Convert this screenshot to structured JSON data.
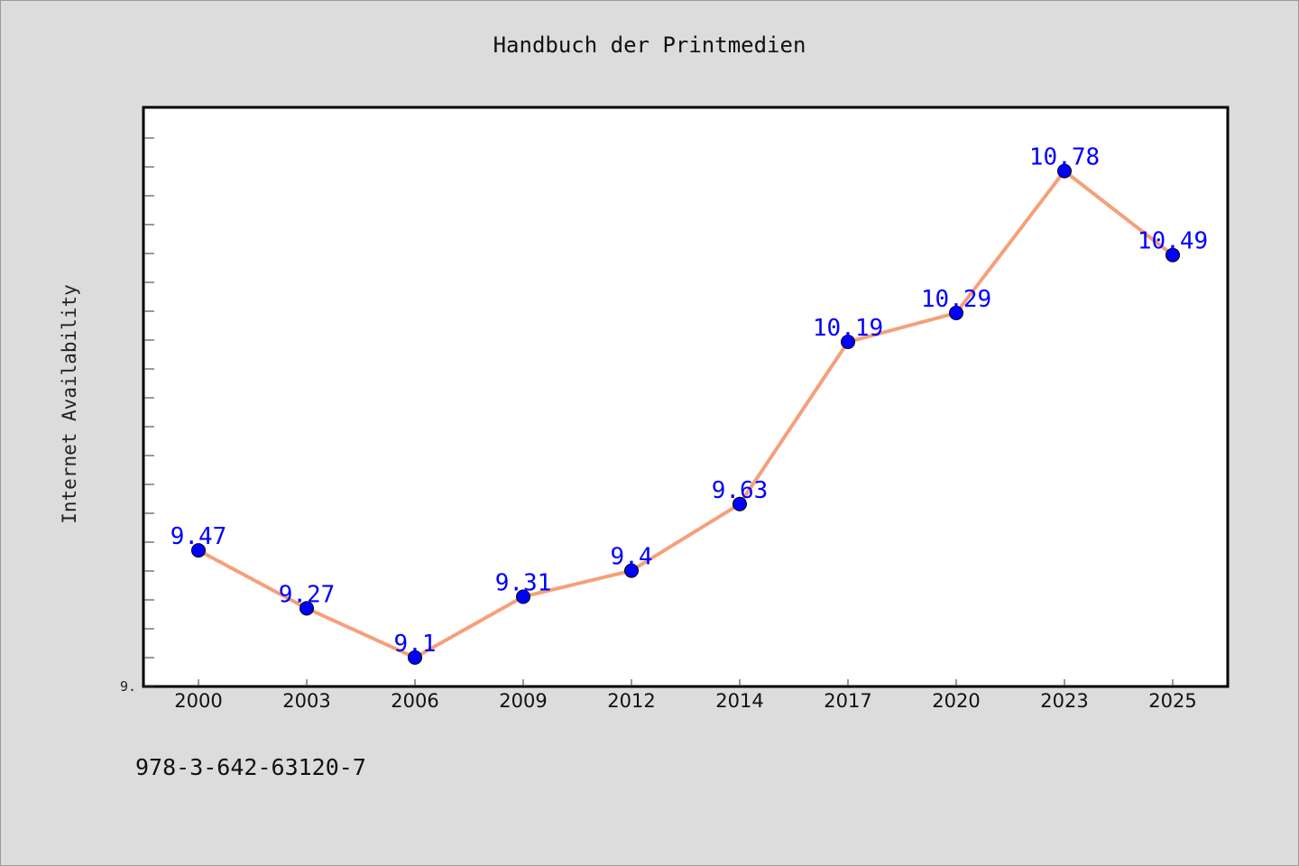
{
  "chart_data": {
    "type": "line",
    "title": "Handbuch der Printmedien",
    "xlabel": "",
    "ylabel": "Internet Availability",
    "categories": [
      "2000",
      "2003",
      "2006",
      "2009",
      "2012",
      "2014",
      "2017",
      "2020",
      "2023",
      "2025"
    ],
    "series": [
      {
        "values": [
          9.47,
          9.27,
          9.1,
          9.31,
          9.4,
          9.63,
          10.19,
          10.29,
          10.78,
          10.49
        ]
      }
    ],
    "data_labels": [
      "9.47",
      "9.27",
      "9.1",
      "9.31",
      "9.4",
      "9.63",
      "10.19",
      "10.29",
      "10.78",
      "10.49"
    ],
    "y_tick_label": "9.",
    "ylim": [
      9.0,
      11.0
    ],
    "grid": false,
    "legend": "none",
    "colors": {
      "line": "#f5a07a",
      "marker": "#0000ff",
      "label": "#0000ff",
      "background": "#dcdcdc",
      "plot_bg": "#ffffff"
    }
  },
  "footer_text": "978-3-642-63120-7"
}
